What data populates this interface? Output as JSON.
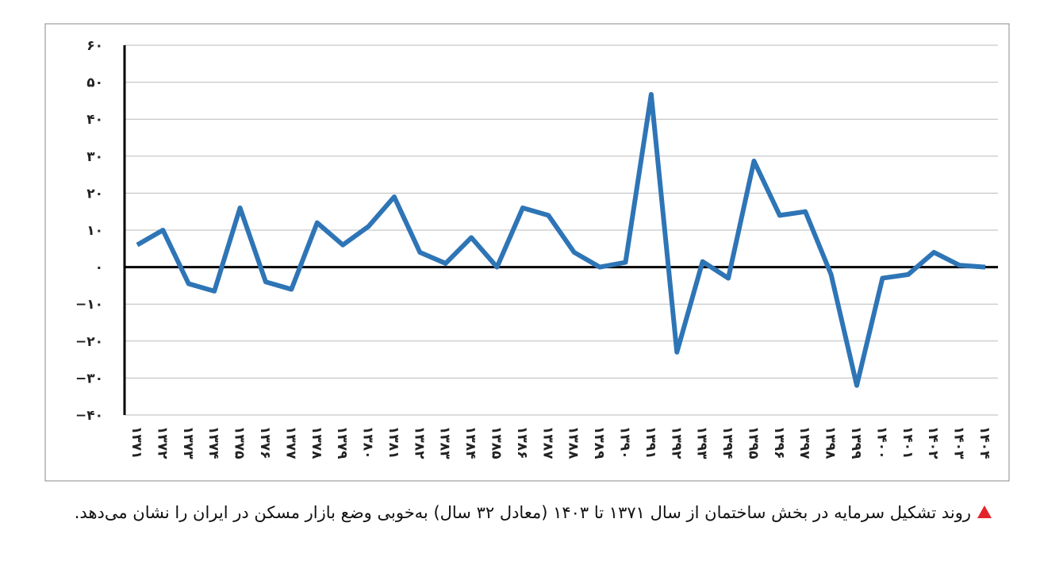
{
  "chart_data": {
    "type": "line",
    "caption": "روند تشکیل سرمایه در بخش ساختمان از سال ۱۳۷۱ تا ۱۴۰۳ (معادل ۳۲ سال) به‌خوبی وضع بازار مسکن در ایران را نشان می‌دهد.",
    "categories": [
      "۱۳۷۱",
      "۱۳۷۲",
      "۱۳۷۳",
      "۱۳۷۴",
      "۱۳۷۵",
      "۱۳۷۶",
      "۱۳۷۷",
      "۱۳۷۸",
      "۱۳۷۹",
      "۱۳۸۰",
      "۱۳۸۱",
      "۱۳۸۲",
      "۱۳۸۳",
      "۱۳۸۴",
      "۱۳۸۵",
      "۱۳۸۶",
      "۱۳۸۷",
      "۱۳۸۸",
      "۱۳۸۹",
      "۱۳۹۰",
      "۱۳۹۱",
      "۱۳۹۲",
      "۱۳۹۳",
      "۱۳۹۴",
      "۱۳۹۵",
      "۱۳۹۶",
      "۱۳۹۷",
      "۱۳۹۸",
      "۱۳۹۹",
      "۱۴۰۰",
      "۱۴۰۱",
      "۱۴۰۲",
      "۱۴۰۳",
      "۱۴۰۴"
    ],
    "series": [
      {
        "color": "#2e75b6",
        "values": [
          6,
          10,
          -4.5,
          -6.5,
          16,
          -4,
          -6,
          12,
          6,
          11,
          19,
          4,
          1,
          8,
          0,
          16,
          14,
          4,
          0,
          1.3,
          46.7,
          -23,
          1.5,
          -3,
          28.7,
          14,
          15,
          -2,
          -32,
          -3,
          -2,
          4,
          0.5,
          0
        ]
      }
    ],
    "ylim": [
      -40,
      60
    ],
    "yticks": [
      {
        "value": -40,
        "label": "−۴۰"
      },
      {
        "value": -30,
        "label": "−۳۰"
      },
      {
        "value": -20,
        "label": "−۲۰"
      },
      {
        "value": -10,
        "label": "−۱۰"
      },
      {
        "value": 0,
        "label": "۰"
      },
      {
        "value": 10,
        "label": "۱۰"
      },
      {
        "value": 20,
        "label": "۲۰"
      },
      {
        "value": 30,
        "label": "۳۰"
      },
      {
        "value": 40,
        "label": "۴۰"
      },
      {
        "value": 50,
        "label": "۵۰"
      },
      {
        "value": 60,
        "label": "۶۰"
      }
    ],
    "grid": true
  }
}
